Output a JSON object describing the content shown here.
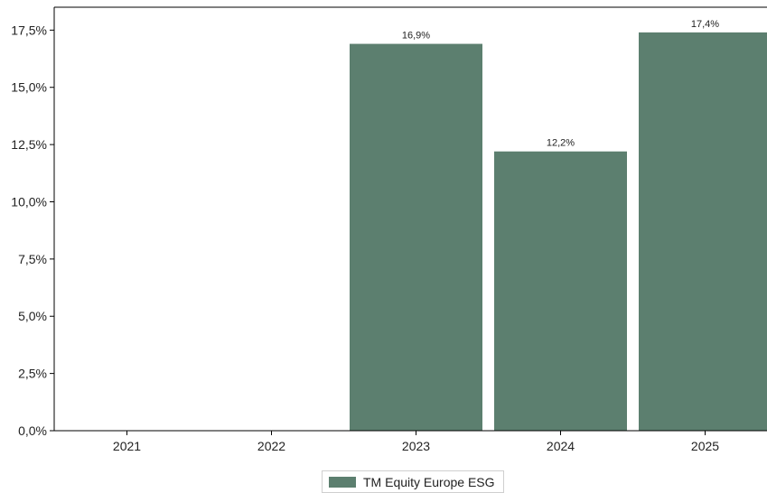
{
  "chart_data": {
    "type": "bar",
    "categories": [
      "2021",
      "2022",
      "2023",
      "2024",
      "2025"
    ],
    "series": [
      {
        "name": "TM Equity Europe ESG",
        "values": [
          null,
          null,
          16.9,
          12.2,
          17.4
        ],
        "data_labels": [
          "",
          "",
          "16,9%",
          "12,2%",
          "17,4%"
        ],
        "color": "#5c7f6f"
      }
    ],
    "y_ticks": [
      0,
      2.5,
      5,
      7.5,
      10,
      12.5,
      15,
      17.5
    ],
    "y_tick_labels": [
      "0,0%",
      "2,5%",
      "5,0%",
      "7,5%",
      "10,0%",
      "12,5%",
      "15,0%",
      "17,5%"
    ],
    "ylim": [
      0,
      18.5
    ],
    "title": "",
    "xlabel": "",
    "ylabel": "",
    "grid": false,
    "legend_position": "bottom-center"
  }
}
